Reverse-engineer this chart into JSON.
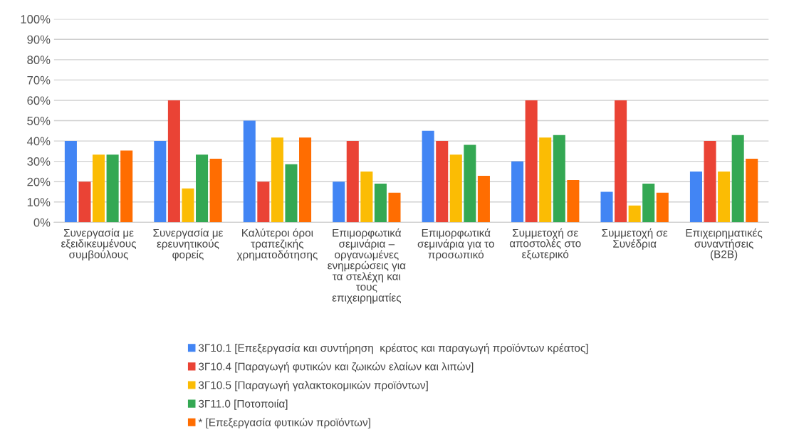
{
  "chart_data": {
    "type": "bar",
    "categories": [
      "Συνεργασία με\nεξειδικευμένους\nσυμβούλους",
      "Συνεργασία με\nερευνητικούς\nφορείς",
      "Καλύτεροι όροι\nτραπεζικής\nχρηματοδότησης",
      "Επιμορφωτικά\nσεμινάρια –\nοργανωμένες\nενημερώσεις για\nτα στελέχη και\nτους\nεπιχειρηματίες",
      "Επιμορφωτικά\nσεμινάρια για το\nπροσωπικό",
      "Συμμετοχή σε\nαποστολές στο\nεξωτερικό",
      "Συμμετοχή σε\nΣυνέδρια",
      "Επιχειρηματικές\nσυναντήσεις\n(B2B)"
    ],
    "series": [
      {
        "name": "3Γ10.1 [Επεξεργασία και συντήρηση  κρέατος και παραγωγή προϊόντων κρέατος]",
        "color": "#4285f4",
        "values": [
          40,
          40,
          50,
          20,
          45,
          30,
          15,
          25
        ]
      },
      {
        "name": "3Γ10.4 [Παραγωγή φυτικών και ζωικών ελαίων και λιπών]",
        "color": "#ea4335",
        "values": [
          20,
          60,
          20,
          40,
          40,
          60,
          60,
          40
        ]
      },
      {
        "name": "3Γ10.5 [Παραγωγή γαλακτοκομικών προϊόντων]",
        "color": "#fbbc04",
        "values": [
          33.3,
          16.7,
          41.7,
          25,
          33.3,
          41.7,
          8.3,
          25
        ]
      },
      {
        "name": "3Γ11.0 [Ποτοποιία]",
        "color": "#34a853",
        "values": [
          33.3,
          33.3,
          28.6,
          19,
          38.1,
          42.9,
          19,
          42.9
        ]
      },
      {
        "name": "* [Επεξεργασία φυτικών προϊόντων]",
        "color": "#ff6d01",
        "values": [
          35.3,
          31.3,
          41.7,
          14.6,
          22.9,
          20.8,
          14.6,
          31.3
        ]
      }
    ],
    "ylim": [
      0,
      100
    ],
    "yticks": [
      {
        "value": 0,
        "label": "0%"
      },
      {
        "value": 10,
        "label": "10%"
      },
      {
        "value": 20,
        "label": "20%"
      },
      {
        "value": 30,
        "label": "30%"
      },
      {
        "value": 40,
        "label": "40%"
      },
      {
        "value": 50,
        "label": "50%"
      },
      {
        "value": 60,
        "label": "60%"
      },
      {
        "value": 70,
        "label": "70%"
      },
      {
        "value": 80,
        "label": "80%"
      },
      {
        "value": 90,
        "label": "90%"
      },
      {
        "value": 100,
        "label": "100%"
      }
    ],
    "grid": "y",
    "legend": "bottom"
  }
}
